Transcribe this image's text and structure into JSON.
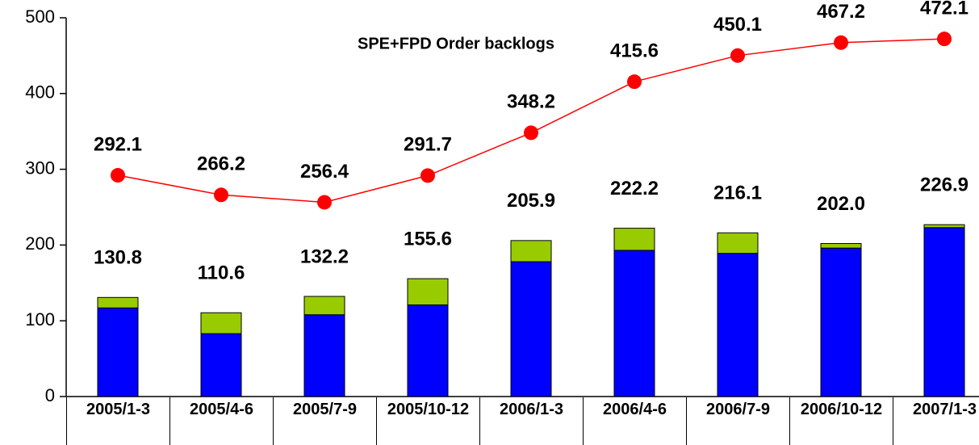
{
  "chart_data": {
    "type": "bar",
    "annotation": "SPE+FPD Order backlogs",
    "categories": [
      "2005/1-3",
      "2005/4-6",
      "2005/7-9",
      "2005/10-12",
      "2006/1-3",
      "2006/4-6",
      "2006/7-9",
      "2006/10-12",
      "2007/1-3"
    ],
    "series": [
      {
        "color": "#0000ff",
        "values": [
          117,
          83,
          108,
          121,
          178,
          193,
          189,
          196,
          223
        ]
      },
      {
        "color": "#99cc00",
        "values": [
          13.8,
          27.6,
          24.2,
          34.6,
          27.9,
          29.2,
          27.1,
          6,
          3.9
        ]
      }
    ],
    "totals": {
      "values": [
        130.8,
        110.6,
        132.2,
        155.6,
        205.9,
        222.2,
        216.1,
        202,
        226.9
      ],
      "value_labels": [
        "130.8",
        "110.6",
        "132.2",
        "155.6",
        "205.9",
        "222.2",
        "216.1",
        "202.0",
        "226.9"
      ]
    },
    "line": {
      "type": "line",
      "color": "#ff0000",
      "values": [
        292.1,
        266.2,
        256.4,
        291.7,
        348.2,
        415.6,
        450.1,
        467.2,
        472.1
      ]
    },
    "ylim": [
      0,
      500
    ],
    "yticks": [
      0,
      100,
      200,
      300,
      400,
      500
    ]
  }
}
